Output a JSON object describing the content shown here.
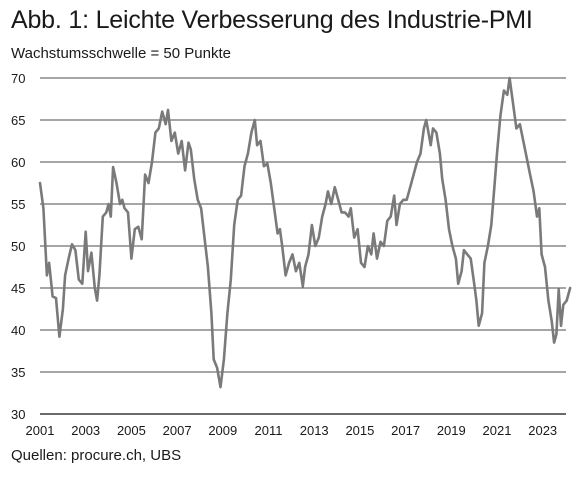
{
  "title": "Abb. 1: Leichte Verbesserung des Industrie-PMI",
  "subtitle": "Wachstumsschwelle = 50 Punkte",
  "source": "Quellen: procure.ch, UBS",
  "colors": {
    "line": "#7a7a7a",
    "grid": "#111111",
    "text": "#1a1a1a"
  },
  "chart_data": {
    "type": "line",
    "title": "Abb. 1: Leichte Verbesserung des Industrie-PMI",
    "subtitle": "Wachstumsschwelle = 50 Punkte",
    "xlabel": "",
    "ylabel": "",
    "ylim": [
      30,
      70
    ],
    "xlim": [
      2001,
      2024.2
    ],
    "y_ticks": [
      30,
      35,
      40,
      45,
      50,
      55,
      60,
      65,
      70
    ],
    "x_ticks": [
      2001,
      2003,
      2005,
      2007,
      2009,
      2011,
      2013,
      2015,
      2017,
      2019,
      2021,
      2023
    ],
    "grid": "horizontal",
    "legend": "none",
    "series": [
      {
        "values": [
          [
            2001.0,
            57.5
          ],
          [
            2001.15,
            54.5
          ],
          [
            2001.3,
            46.5
          ],
          [
            2001.4,
            48.0
          ],
          [
            2001.55,
            44.0
          ],
          [
            2001.7,
            43.8
          ],
          [
            2001.85,
            39.2
          ],
          [
            2002.0,
            42.5
          ],
          [
            2002.1,
            46.5
          ],
          [
            2002.25,
            48.5
          ],
          [
            2002.4,
            50.2
          ],
          [
            2002.55,
            49.5
          ],
          [
            2002.7,
            46.0
          ],
          [
            2002.85,
            45.5
          ],
          [
            2003.0,
            51.7
          ],
          [
            2003.1,
            47.0
          ],
          [
            2003.25,
            49.2
          ],
          [
            2003.4,
            45.0
          ],
          [
            2003.5,
            43.5
          ],
          [
            2003.6,
            46.5
          ],
          [
            2003.75,
            53.5
          ],
          [
            2003.9,
            54.0
          ],
          [
            2004.0,
            55.0
          ],
          [
            2004.1,
            53.5
          ],
          [
            2004.2,
            59.4
          ],
          [
            2004.35,
            57.5
          ],
          [
            2004.5,
            55.0
          ],
          [
            2004.6,
            55.5
          ],
          [
            2004.7,
            54.5
          ],
          [
            2004.85,
            54.0
          ],
          [
            2005.0,
            48.5
          ],
          [
            2005.15,
            52.0
          ],
          [
            2005.3,
            52.3
          ],
          [
            2005.45,
            50.8
          ],
          [
            2005.6,
            58.5
          ],
          [
            2005.75,
            57.5
          ],
          [
            2005.9,
            60.0
          ],
          [
            2006.05,
            63.5
          ],
          [
            2006.2,
            64.0
          ],
          [
            2006.35,
            66.0
          ],
          [
            2006.5,
            64.5
          ],
          [
            2006.6,
            66.2
          ],
          [
            2006.75,
            62.5
          ],
          [
            2006.9,
            63.5
          ],
          [
            2007.05,
            61.0
          ],
          [
            2007.2,
            62.5
          ],
          [
            2007.35,
            59.0
          ],
          [
            2007.5,
            62.3
          ],
          [
            2007.6,
            61.5
          ],
          [
            2007.75,
            58.0
          ],
          [
            2007.9,
            55.5
          ],
          [
            2008.05,
            54.5
          ],
          [
            2008.2,
            51.0
          ],
          [
            2008.35,
            47.5
          ],
          [
            2008.5,
            42.0
          ],
          [
            2008.6,
            36.5
          ],
          [
            2008.75,
            35.5
          ],
          [
            2008.9,
            33.2
          ],
          [
            2009.05,
            36.5
          ],
          [
            2009.2,
            42.0
          ],
          [
            2009.35,
            46.0
          ],
          [
            2009.5,
            52.5
          ],
          [
            2009.65,
            55.5
          ],
          [
            2009.8,
            56.0
          ],
          [
            2009.95,
            59.5
          ],
          [
            2010.1,
            61.0
          ],
          [
            2010.25,
            63.5
          ],
          [
            2010.4,
            65.0
          ],
          [
            2010.5,
            62.0
          ],
          [
            2010.65,
            62.5
          ],
          [
            2010.8,
            59.5
          ],
          [
            2010.95,
            59.8
          ],
          [
            2011.1,
            57.5
          ],
          [
            2011.25,
            54.5
          ],
          [
            2011.4,
            51.5
          ],
          [
            2011.5,
            52.0
          ],
          [
            2011.6,
            50.0
          ],
          [
            2011.75,
            46.5
          ],
          [
            2011.9,
            48.0
          ],
          [
            2012.05,
            49.0
          ],
          [
            2012.2,
            47.0
          ],
          [
            2012.35,
            48.0
          ],
          [
            2012.5,
            45.2
          ],
          [
            2012.6,
            47.5
          ],
          [
            2012.75,
            49.0
          ],
          [
            2012.9,
            52.5
          ],
          [
            2013.05,
            50.0
          ],
          [
            2013.2,
            51.0
          ],
          [
            2013.35,
            53.5
          ],
          [
            2013.5,
            55.0
          ],
          [
            2013.6,
            56.5
          ],
          [
            2013.75,
            55.0
          ],
          [
            2013.9,
            57.0
          ],
          [
            2014.05,
            55.5
          ],
          [
            2014.2,
            54.0
          ],
          [
            2014.35,
            54.0
          ],
          [
            2014.5,
            53.5
          ],
          [
            2014.6,
            54.5
          ],
          [
            2014.75,
            51.0
          ],
          [
            2014.9,
            52.0
          ],
          [
            2015.05,
            48.0
          ],
          [
            2015.2,
            47.5
          ],
          [
            2015.35,
            50.0
          ],
          [
            2015.5,
            49.0
          ],
          [
            2015.6,
            51.5
          ],
          [
            2015.75,
            48.5
          ],
          [
            2015.9,
            50.5
          ],
          [
            2016.05,
            50.0
          ],
          [
            2016.2,
            53.0
          ],
          [
            2016.35,
            53.5
          ],
          [
            2016.5,
            56.0
          ],
          [
            2016.6,
            52.5
          ],
          [
            2016.75,
            55.0
          ],
          [
            2016.9,
            55.5
          ],
          [
            2017.05,
            55.5
          ],
          [
            2017.2,
            57.0
          ],
          [
            2017.35,
            58.5
          ],
          [
            2017.5,
            60.0
          ],
          [
            2017.65,
            61.0
          ],
          [
            2017.8,
            64.0
          ],
          [
            2017.9,
            65.0
          ],
          [
            2018.0,
            63.5
          ],
          [
            2018.1,
            62.0
          ],
          [
            2018.2,
            64.0
          ],
          [
            2018.35,
            63.5
          ],
          [
            2018.5,
            61.0
          ],
          [
            2018.6,
            58.0
          ],
          [
            2018.75,
            55.5
          ],
          [
            2018.9,
            52.0
          ],
          [
            2019.05,
            50.0
          ],
          [
            2019.2,
            48.5
          ],
          [
            2019.3,
            45.5
          ],
          [
            2019.45,
            47.0
          ],
          [
            2019.55,
            49.5
          ],
          [
            2019.7,
            49.0
          ],
          [
            2019.85,
            48.5
          ],
          [
            2020.0,
            45.5
          ],
          [
            2020.1,
            43.5
          ],
          [
            2020.2,
            40.5
          ],
          [
            2020.35,
            42.0
          ],
          [
            2020.45,
            48.0
          ],
          [
            2020.6,
            50.0
          ],
          [
            2020.75,
            52.5
          ],
          [
            2020.9,
            57.5
          ],
          [
            2021.0,
            61.0
          ],
          [
            2021.15,
            65.5
          ],
          [
            2021.3,
            68.5
          ],
          [
            2021.45,
            68.0
          ],
          [
            2021.55,
            70.0
          ],
          [
            2021.7,
            67.0
          ],
          [
            2021.85,
            64.0
          ],
          [
            2022.0,
            64.5
          ],
          [
            2022.15,
            62.5
          ],
          [
            2022.3,
            60.5
          ],
          [
            2022.45,
            58.5
          ],
          [
            2022.6,
            56.5
          ],
          [
            2022.75,
            53.5
          ],
          [
            2022.85,
            54.5
          ],
          [
            2022.95,
            49.0
          ],
          [
            2023.1,
            47.5
          ],
          [
            2023.25,
            43.5
          ],
          [
            2023.4,
            41.0
          ],
          [
            2023.5,
            38.5
          ],
          [
            2023.6,
            39.5
          ],
          [
            2023.7,
            44.8
          ],
          [
            2023.8,
            40.5
          ],
          [
            2023.9,
            43.0
          ],
          [
            2024.05,
            43.5
          ],
          [
            2024.2,
            45.0
          ]
        ]
      }
    ]
  }
}
